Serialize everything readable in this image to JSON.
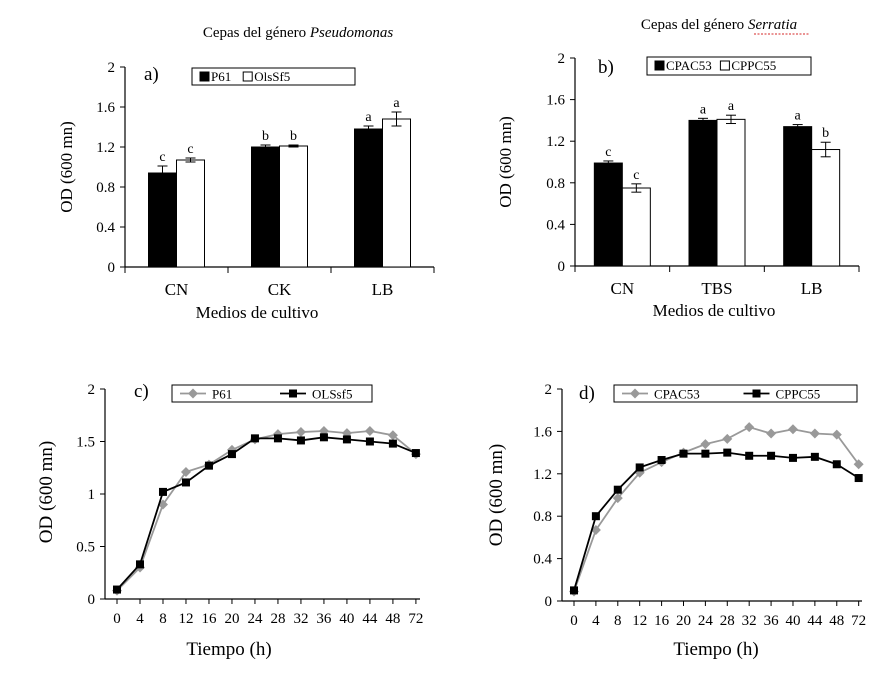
{
  "charts": [
    {
      "id": "a",
      "type": "bar",
      "title_prefix": "Cepas del género",
      "title_italic": "Pseudomonas",
      "panel_letter": "a)",
      "xlabel": "Medios de cultivo",
      "ylabel": "OD (600 mn)",
      "ylim": [
        0,
        2
      ],
      "yticks": [
        0,
        0.4,
        0.8,
        1.2,
        1.6,
        2
      ],
      "ytick_labels": [
        "0",
        "0.4",
        "0.8",
        "1.2",
        "1.6",
        "2"
      ],
      "categories": [
        "CN",
        "CK",
        "LB"
      ],
      "legend_position": "top-center",
      "series": [
        {
          "name": "P61",
          "color": "#000000",
          "values": [
            0.94,
            1.2,
            1.38
          ],
          "errors": [
            0.07,
            0.02,
            0.03
          ],
          "labels": [
            "c",
            "b",
            "a"
          ]
        },
        {
          "name": "OlsSf5",
          "color": "#ffffff",
          "values": [
            1.07,
            1.21,
            1.48
          ],
          "errors": [
            0.02,
            0.01,
            0.07
          ],
          "labels": [
            "c",
            "b",
            "a"
          ]
        }
      ]
    },
    {
      "id": "b",
      "type": "bar",
      "title_prefix": "Cepas del género",
      "title_italic": "Serratia",
      "panel_letter": "b)",
      "xlabel": "Medios de cultivo",
      "ylabel": "OD (600 mn)",
      "ylim": [
        0,
        2
      ],
      "yticks": [
        0,
        0.4,
        0.8,
        1.2,
        1.6,
        2
      ],
      "ytick_labels": [
        "0",
        "0.4",
        "0.8",
        "1.2",
        "1.6",
        "2"
      ],
      "categories": [
        "CN",
        "TBS",
        "LB"
      ],
      "legend_position": "top-center",
      "series": [
        {
          "name": "CPAC53",
          "color": "#000000",
          "values": [
            0.99,
            1.4,
            1.34
          ],
          "errors": [
            0.02,
            0.02,
            0.02
          ],
          "labels": [
            "c",
            "a",
            "a"
          ]
        },
        {
          "name": "CPPC55",
          "color": "#ffffff",
          "values": [
            0.75,
            1.41,
            1.12
          ],
          "errors": [
            0.04,
            0.04,
            0.07
          ],
          "labels": [
            "c",
            "a",
            "b"
          ]
        }
      ]
    },
    {
      "id": "c",
      "type": "line",
      "panel_letter": "c)",
      "xlabel": "Tiempo (h)",
      "ylabel": "OD (600 mn)",
      "ylim": [
        0,
        2
      ],
      "yticks": [
        0,
        0.5,
        1,
        1.5,
        2
      ],
      "ytick_labels": [
        "0",
        "0.5",
        "1",
        "1.5",
        "2"
      ],
      "x": [
        "0",
        "4",
        "8",
        "12",
        "16",
        "20",
        "24",
        "28",
        "32",
        "36",
        "40",
        "44",
        "48",
        "72"
      ],
      "legend_position": "top-center",
      "series": [
        {
          "name": "P61",
          "color": "#999999",
          "marker": "diamond",
          "values": [
            0.08,
            0.3,
            0.9,
            1.21,
            1.28,
            1.42,
            1.52,
            1.57,
            1.59,
            1.6,
            1.58,
            1.6,
            1.56,
            1.38
          ]
        },
        {
          "name": "OLSsf5",
          "color": "#000000",
          "marker": "square",
          "values": [
            0.09,
            0.33,
            1.02,
            1.11,
            1.27,
            1.38,
            1.53,
            1.53,
            1.51,
            1.54,
            1.52,
            1.5,
            1.48,
            1.39
          ]
        }
      ]
    },
    {
      "id": "d",
      "type": "line",
      "panel_letter": "d)",
      "xlabel": "Tiempo (h)",
      "ylabel": "OD (600 mn)",
      "ylim": [
        0,
        2
      ],
      "yticks": [
        0,
        0.4,
        0.8,
        1.2,
        1.6,
        2
      ],
      "ytick_labels": [
        "0",
        "0.4",
        "0.8",
        "1.2",
        "1.6",
        "2"
      ],
      "x": [
        "0",
        "4",
        "8",
        "12",
        "16",
        "20",
        "24",
        "28",
        "32",
        "36",
        "40",
        "44",
        "48",
        "72"
      ],
      "legend_position": "top-center",
      "series": [
        {
          "name": "CPAC53",
          "color": "#999999",
          "marker": "diamond",
          "values": [
            0.09,
            0.67,
            0.97,
            1.21,
            1.31,
            1.4,
            1.48,
            1.53,
            1.64,
            1.58,
            1.62,
            1.58,
            1.57,
            1.29
          ]
        },
        {
          "name": "CPPC55",
          "color": "#000000",
          "marker": "square",
          "values": [
            0.1,
            0.8,
            1.05,
            1.26,
            1.33,
            1.39,
            1.39,
            1.4,
            1.37,
            1.37,
            1.35,
            1.36,
            1.29,
            1.16
          ]
        }
      ]
    }
  ]
}
